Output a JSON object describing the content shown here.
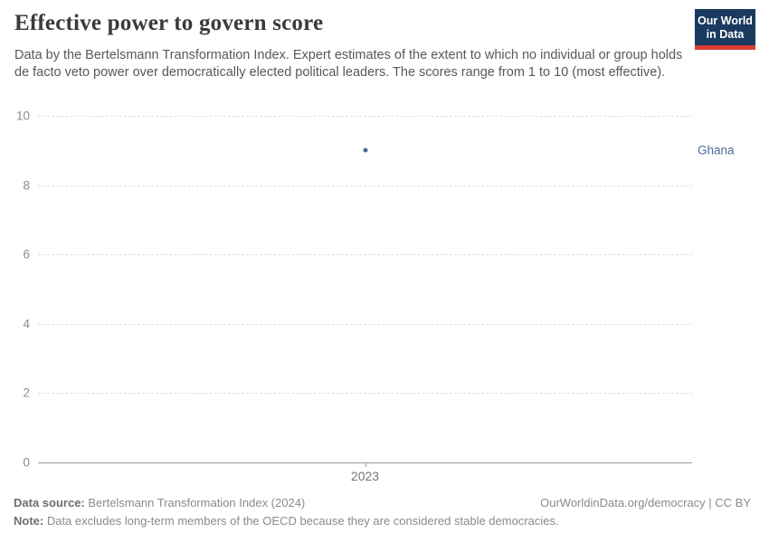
{
  "header": {
    "title": "Effective power to govern score",
    "subtitle": "Data by the Bertelsmann Transformation Index. Expert estimates of the extent to which no individual or group holds de facto veto power over democratically elected political leaders. The scores range from 1 to 10 (most effective).",
    "logo": {
      "line1": "Our World",
      "line2": "in Data",
      "bg_color": "#1a3a5f",
      "bar_color": "#d93d33"
    }
  },
  "chart_data": {
    "type": "scatter",
    "title": "Effective power to govern score",
    "xlabel": "",
    "ylabel": "",
    "ylim": [
      0,
      10
    ],
    "yticks": [
      0,
      2,
      4,
      6,
      8,
      10
    ],
    "xticks": [
      "2023"
    ],
    "grid": "horizontal-dashed",
    "legend_position": "right-of-plot",
    "series": [
      {
        "name": "Ghana",
        "color": "#4c6a9c",
        "points": [
          {
            "x": "2023",
            "y": 9
          }
        ]
      }
    ]
  },
  "footer": {
    "datasource_label": "Data source:",
    "datasource_value": " Bertelsmann Transformation Index (2024)",
    "attribution": "OurWorldinData.org/democracy | CC BY",
    "note_label": "Note:",
    "note_value": " Data excludes long-term members of the OECD because they are considered stable democracies."
  }
}
